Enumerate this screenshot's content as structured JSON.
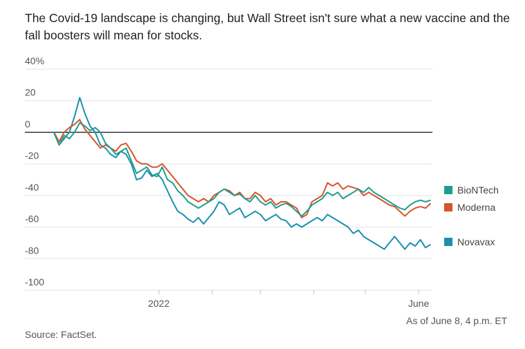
{
  "title": "The Covid-19 landscape is changing, but Wall Street isn't sure what a new vaccine and the fall boosters will mean for stocks.",
  "note": "As of June 8, 4 p.m. ET",
  "source": "Source: FactSet.",
  "chart_data": {
    "type": "line",
    "ylim": [
      -100,
      40
    ],
    "yticks": [
      {
        "value": 40,
        "label": "40%"
      },
      {
        "value": 20,
        "label": "20"
      },
      {
        "value": 0,
        "label": "0"
      },
      {
        "value": -20,
        "label": "-20"
      },
      {
        "value": -40,
        "label": "-40"
      },
      {
        "value": -60,
        "label": "-60"
      },
      {
        "value": -80,
        "label": "-80"
      },
      {
        "value": -100,
        "label": "-100"
      }
    ],
    "x_range": [
      "2021-11-01",
      "2022-06-09"
    ],
    "xticks": [
      {
        "date": "2022-01-01",
        "label": "2022"
      },
      {
        "date": "2022-02-01",
        "label": ""
      },
      {
        "date": "2022-03-01",
        "label": ""
      },
      {
        "date": "2022-04-01",
        "label": ""
      },
      {
        "date": "2022-05-01",
        "label": ""
      },
      {
        "date": "2022-06-01",
        "label": "June"
      }
    ],
    "series": [
      {
        "name": "BioNTech",
        "color": "#1e9e8e",
        "points": [
          [
            "2021-11-01",
            0
          ],
          [
            "2021-11-04",
            -8
          ],
          [
            "2021-11-07",
            -2
          ],
          [
            "2021-11-10",
            -4
          ],
          [
            "2021-11-13",
            0
          ],
          [
            "2021-11-16",
            6
          ],
          [
            "2021-11-19",
            4
          ],
          [
            "2021-11-22",
            1
          ],
          [
            "2021-11-25",
            3
          ],
          [
            "2021-11-28",
            0
          ],
          [
            "2021-12-01",
            -7
          ],
          [
            "2021-12-04",
            -10
          ],
          [
            "2021-12-07",
            -14
          ],
          [
            "2021-12-10",
            -12
          ],
          [
            "2021-12-13",
            -10
          ],
          [
            "2021-12-16",
            -18
          ],
          [
            "2021-12-19",
            -26
          ],
          [
            "2021-12-22",
            -24
          ],
          [
            "2021-12-25",
            -22
          ],
          [
            "2021-12-28",
            -27
          ],
          [
            "2021-12-31",
            -28
          ],
          [
            "2022-01-03",
            -22
          ],
          [
            "2022-01-06",
            -30
          ],
          [
            "2022-01-09",
            -32
          ],
          [
            "2022-01-12",
            -37
          ],
          [
            "2022-01-15",
            -40
          ],
          [
            "2022-01-18",
            -44
          ],
          [
            "2022-01-21",
            -46
          ],
          [
            "2022-01-24",
            -48
          ],
          [
            "2022-01-27",
            -46
          ],
          [
            "2022-01-30",
            -44
          ],
          [
            "2022-02-02",
            -42
          ],
          [
            "2022-02-05",
            -38
          ],
          [
            "2022-02-08",
            -36
          ],
          [
            "2022-02-11",
            -38
          ],
          [
            "2022-02-14",
            -40
          ],
          [
            "2022-02-17",
            -39
          ],
          [
            "2022-02-20",
            -42
          ],
          [
            "2022-02-23",
            -44
          ],
          [
            "2022-02-26",
            -40
          ],
          [
            "2022-03-01",
            -44
          ],
          [
            "2022-03-04",
            -46
          ],
          [
            "2022-03-07",
            -44
          ],
          [
            "2022-03-10",
            -48
          ],
          [
            "2022-03-13",
            -46
          ],
          [
            "2022-03-16",
            -45
          ],
          [
            "2022-03-19",
            -47
          ],
          [
            "2022-03-22",
            -50
          ],
          [
            "2022-03-25",
            -53
          ],
          [
            "2022-03-28",
            -50
          ],
          [
            "2022-03-31",
            -46
          ],
          [
            "2022-04-03",
            -44
          ],
          [
            "2022-04-06",
            -42
          ],
          [
            "2022-04-09",
            -38
          ],
          [
            "2022-04-12",
            -40
          ],
          [
            "2022-04-15",
            -38
          ],
          [
            "2022-04-18",
            -42
          ],
          [
            "2022-04-21",
            -40
          ],
          [
            "2022-04-24",
            -38
          ],
          [
            "2022-04-27",
            -36
          ],
          [
            "2022-04-30",
            -38
          ],
          [
            "2022-05-03",
            -35
          ],
          [
            "2022-05-06",
            -38
          ],
          [
            "2022-05-09",
            -40
          ],
          [
            "2022-05-12",
            -42
          ],
          [
            "2022-05-15",
            -44
          ],
          [
            "2022-05-18",
            -46
          ],
          [
            "2022-05-21",
            -48
          ],
          [
            "2022-05-24",
            -49
          ],
          [
            "2022-05-27",
            -46
          ],
          [
            "2022-05-30",
            -44
          ],
          [
            "2022-06-02",
            -43
          ],
          [
            "2022-06-05",
            -44
          ],
          [
            "2022-06-08",
            -43
          ]
        ]
      },
      {
        "name": "Moderna",
        "color": "#d9532b",
        "points": [
          [
            "2021-11-01",
            0
          ],
          [
            "2021-11-04",
            -6
          ],
          [
            "2021-11-07",
            0
          ],
          [
            "2021-11-10",
            3
          ],
          [
            "2021-11-13",
            5
          ],
          [
            "2021-11-16",
            8
          ],
          [
            "2021-11-19",
            2
          ],
          [
            "2021-11-22",
            -2
          ],
          [
            "2021-11-25",
            -6
          ],
          [
            "2021-11-28",
            -10
          ],
          [
            "2021-12-01",
            -8
          ],
          [
            "2021-12-04",
            -10
          ],
          [
            "2021-12-07",
            -12
          ],
          [
            "2021-12-10",
            -8
          ],
          [
            "2021-12-13",
            -7
          ],
          [
            "2021-12-16",
            -12
          ],
          [
            "2021-12-19",
            -18
          ],
          [
            "2021-12-22",
            -20
          ],
          [
            "2021-12-25",
            -20
          ],
          [
            "2021-12-28",
            -22
          ],
          [
            "2021-12-31",
            -22
          ],
          [
            "2022-01-03",
            -20
          ],
          [
            "2022-01-06",
            -24
          ],
          [
            "2022-01-09",
            -28
          ],
          [
            "2022-01-12",
            -32
          ],
          [
            "2022-01-15",
            -36
          ],
          [
            "2022-01-18",
            -40
          ],
          [
            "2022-01-21",
            -42
          ],
          [
            "2022-01-24",
            -44
          ],
          [
            "2022-01-27",
            -42
          ],
          [
            "2022-01-30",
            -44
          ],
          [
            "2022-02-02",
            -40
          ],
          [
            "2022-02-05",
            -38
          ],
          [
            "2022-02-08",
            -36
          ],
          [
            "2022-02-11",
            -37
          ],
          [
            "2022-02-14",
            -40
          ],
          [
            "2022-02-17",
            -38
          ],
          [
            "2022-02-20",
            -42
          ],
          [
            "2022-02-23",
            -42
          ],
          [
            "2022-02-26",
            -38
          ],
          [
            "2022-03-01",
            -40
          ],
          [
            "2022-03-04",
            -44
          ],
          [
            "2022-03-07",
            -42
          ],
          [
            "2022-03-10",
            -46
          ],
          [
            "2022-03-13",
            -44
          ],
          [
            "2022-03-16",
            -44
          ],
          [
            "2022-03-19",
            -46
          ],
          [
            "2022-03-22",
            -48
          ],
          [
            "2022-03-25",
            -54
          ],
          [
            "2022-03-28",
            -52
          ],
          [
            "2022-03-31",
            -44
          ],
          [
            "2022-04-03",
            -42
          ],
          [
            "2022-04-06",
            -40
          ],
          [
            "2022-04-09",
            -32
          ],
          [
            "2022-04-12",
            -34
          ],
          [
            "2022-04-15",
            -32
          ],
          [
            "2022-04-18",
            -36
          ],
          [
            "2022-04-21",
            -34
          ],
          [
            "2022-04-24",
            -35
          ],
          [
            "2022-04-27",
            -36
          ],
          [
            "2022-04-30",
            -40
          ],
          [
            "2022-05-03",
            -38
          ],
          [
            "2022-05-06",
            -40
          ],
          [
            "2022-05-09",
            -42
          ],
          [
            "2022-05-12",
            -44
          ],
          [
            "2022-05-15",
            -46
          ],
          [
            "2022-05-18",
            -47
          ],
          [
            "2022-05-21",
            -50
          ],
          [
            "2022-05-24",
            -53
          ],
          [
            "2022-05-27",
            -50
          ],
          [
            "2022-05-30",
            -48
          ],
          [
            "2022-06-02",
            -47
          ],
          [
            "2022-06-05",
            -48
          ],
          [
            "2022-06-08",
            -45
          ]
        ]
      },
      {
        "name": "Novavax",
        "color": "#1a8fae",
        "points": [
          [
            "2021-11-01",
            0
          ],
          [
            "2021-11-04",
            -8
          ],
          [
            "2021-11-07",
            -4
          ],
          [
            "2021-11-10",
            0
          ],
          [
            "2021-11-13",
            10
          ],
          [
            "2021-11-16",
            22
          ],
          [
            "2021-11-19",
            12
          ],
          [
            "2021-11-22",
            4
          ],
          [
            "2021-11-25",
            0
          ],
          [
            "2021-11-28",
            -8
          ],
          [
            "2021-12-01",
            -10
          ],
          [
            "2021-12-04",
            -14
          ],
          [
            "2021-12-07",
            -16
          ],
          [
            "2021-12-10",
            -12
          ],
          [
            "2021-12-13",
            -14
          ],
          [
            "2021-12-16",
            -20
          ],
          [
            "2021-12-19",
            -30
          ],
          [
            "2021-12-22",
            -29
          ],
          [
            "2021-12-25",
            -24
          ],
          [
            "2021-12-28",
            -28
          ],
          [
            "2021-12-31",
            -26
          ],
          [
            "2022-01-03",
            -30
          ],
          [
            "2022-01-06",
            -37
          ],
          [
            "2022-01-09",
            -44
          ],
          [
            "2022-01-12",
            -50
          ],
          [
            "2022-01-15",
            -52
          ],
          [
            "2022-01-18",
            -55
          ],
          [
            "2022-01-21",
            -57
          ],
          [
            "2022-01-24",
            -54
          ],
          [
            "2022-01-27",
            -58
          ],
          [
            "2022-01-30",
            -54
          ],
          [
            "2022-02-02",
            -50
          ],
          [
            "2022-02-05",
            -44
          ],
          [
            "2022-02-08",
            -46
          ],
          [
            "2022-02-11",
            -52
          ],
          [
            "2022-02-14",
            -50
          ],
          [
            "2022-02-17",
            -48
          ],
          [
            "2022-02-20",
            -54
          ],
          [
            "2022-02-23",
            -52
          ],
          [
            "2022-02-26",
            -50
          ],
          [
            "2022-03-01",
            -52
          ],
          [
            "2022-03-04",
            -56
          ],
          [
            "2022-03-07",
            -54
          ],
          [
            "2022-03-10",
            -52
          ],
          [
            "2022-03-13",
            -55
          ],
          [
            "2022-03-16",
            -56
          ],
          [
            "2022-03-19",
            -60
          ],
          [
            "2022-03-22",
            -58
          ],
          [
            "2022-03-25",
            -60
          ],
          [
            "2022-03-28",
            -58
          ],
          [
            "2022-03-31",
            -56
          ],
          [
            "2022-04-03",
            -54
          ],
          [
            "2022-04-06",
            -56
          ],
          [
            "2022-04-09",
            -52
          ],
          [
            "2022-04-12",
            -54
          ],
          [
            "2022-04-15",
            -56
          ],
          [
            "2022-04-18",
            -58
          ],
          [
            "2022-04-21",
            -60
          ],
          [
            "2022-04-24",
            -64
          ],
          [
            "2022-04-27",
            -62
          ],
          [
            "2022-04-30",
            -66
          ],
          [
            "2022-05-03",
            -68
          ],
          [
            "2022-05-06",
            -70
          ],
          [
            "2022-05-09",
            -72
          ],
          [
            "2022-05-12",
            -74
          ],
          [
            "2022-05-15",
            -70
          ],
          [
            "2022-05-18",
            -66
          ],
          [
            "2022-05-21",
            -70
          ],
          [
            "2022-05-24",
            -74
          ],
          [
            "2022-05-27",
            -70
          ],
          [
            "2022-05-30",
            -72
          ],
          [
            "2022-06-02",
            -68
          ],
          [
            "2022-06-05",
            -73
          ],
          [
            "2022-06-08",
            -71
          ]
        ]
      }
    ],
    "legend": "right",
    "grid": true
  }
}
